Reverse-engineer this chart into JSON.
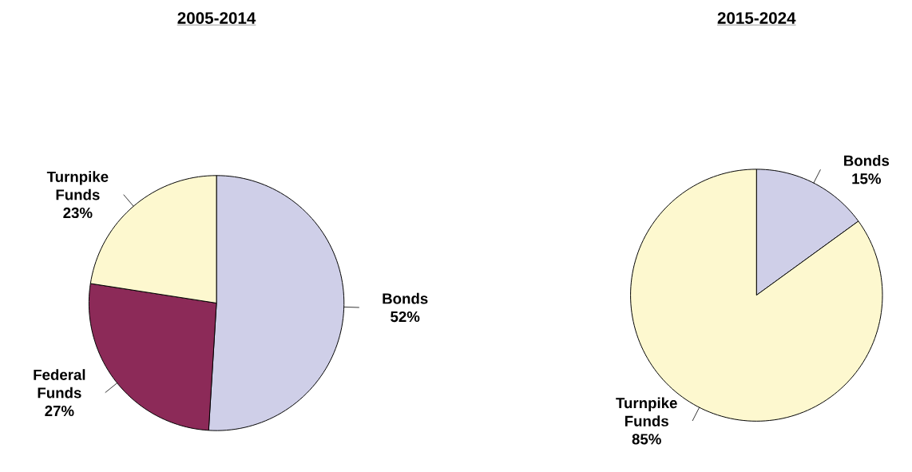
{
  "chart_data": [
    {
      "type": "pie",
      "title": "2005-2014",
      "categories": [
        "Bonds",
        "Federal Funds",
        "Turnpike Funds"
      ],
      "values": [
        52,
        27,
        23
      ],
      "value_labels": [
        "52%",
        "27%",
        "23%"
      ],
      "colors": [
        "#cfcfe8",
        "#8c2a58",
        "#fdf8cf"
      ]
    },
    {
      "type": "pie",
      "title": "2015-2024",
      "categories": [
        "Bonds",
        "Turnpike Funds"
      ],
      "values": [
        15,
        85
      ],
      "value_labels": [
        "15%",
        "85%"
      ],
      "colors": [
        "#cfcfe8",
        "#fdf8cf"
      ]
    }
  ]
}
